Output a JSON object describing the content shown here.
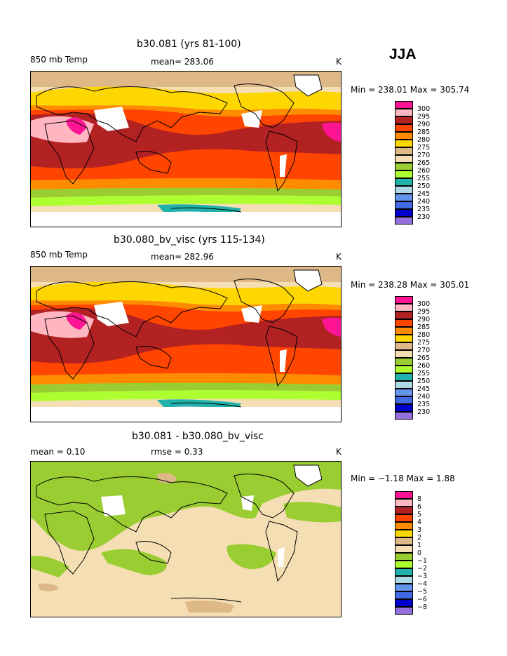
{
  "season": "JJA",
  "legend_colors_temp": [
    "#ff1493",
    "#ffb6c1",
    "#b22222",
    "#ff4500",
    "#ff8c00",
    "#ffd700",
    "#deb887",
    "#f5deb3",
    "#9acd32",
    "#adff2f",
    "#20b2aa",
    "#add8e6",
    "#6495ed",
    "#4169e1",
    "#0000cd",
    "#9370db"
  ],
  "panels": [
    {
      "title": "b30.081 (yrs 81-100)",
      "left_label": "850 mb Temp",
      "mean_label": "mean= 283.06",
      "unit": "K",
      "minmax": "Min = 238.01 Max = 305.74",
      "legend_labels": [
        "300",
        "295",
        "290",
        "285",
        "280",
        "275",
        "270",
        "265",
        "260",
        "255",
        "250",
        "245",
        "240",
        "235",
        "230"
      ]
    },
    {
      "title": "b30.080_bv_visc (yrs 115-134)",
      "left_label": "850 mb Temp",
      "mean_label": "mean= 282.96",
      "unit": "K",
      "minmax": "Min = 238.28 Max = 305.01",
      "legend_labels": [
        "300",
        "295",
        "290",
        "285",
        "280",
        "275",
        "270",
        "265",
        "260",
        "255",
        "250",
        "245",
        "240",
        "235",
        "230"
      ]
    },
    {
      "title": "b30.081 - b30.080_bv_visc",
      "left_label": "mean =   0.10",
      "mean_label": "rmse =   0.33",
      "unit": "K",
      "minmax": "Min =  −1.18 Max =   1.88",
      "legend_labels": [
        "8",
        "6",
        "5",
        "4",
        "3",
        "2",
        "1",
        "0",
        "−1",
        "−2",
        "−3",
        "−4",
        "−5",
        "−6",
        "−8"
      ]
    }
  ]
}
